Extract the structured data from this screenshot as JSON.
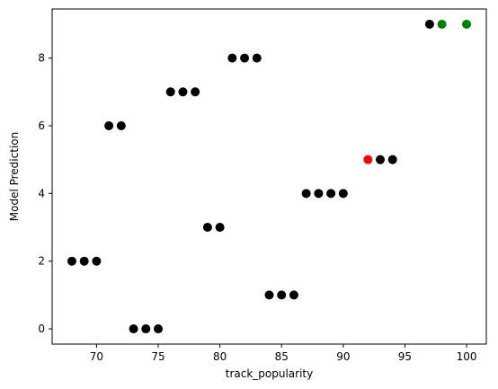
{
  "chart_data": {
    "type": "scatter",
    "title": "",
    "xlabel": "track_popularity",
    "ylabel": "Model Prediction",
    "xlim": [
      66.4,
      101.6
    ],
    "ylim": [
      -0.45,
      9.45
    ],
    "x_ticks": [
      70,
      75,
      80,
      85,
      90,
      95,
      100
    ],
    "y_ticks": [
      0,
      2,
      4,
      6,
      8
    ],
    "grid": false,
    "legend": "none",
    "series": [
      {
        "color": "#000000",
        "points": [
          {
            "x": 68,
            "y": 2
          },
          {
            "x": 69,
            "y": 2
          },
          {
            "x": 70,
            "y": 2
          },
          {
            "x": 71,
            "y": 6
          },
          {
            "x": 72,
            "y": 6
          },
          {
            "x": 73,
            "y": 0
          },
          {
            "x": 74,
            "y": 0
          },
          {
            "x": 75,
            "y": 0
          },
          {
            "x": 76,
            "y": 7
          },
          {
            "x": 77,
            "y": 7
          },
          {
            "x": 78,
            "y": 7
          },
          {
            "x": 79,
            "y": 3
          },
          {
            "x": 80,
            "y": 3
          },
          {
            "x": 81,
            "y": 8
          },
          {
            "x": 82,
            "y": 8
          },
          {
            "x": 83,
            "y": 8
          },
          {
            "x": 84,
            "y": 1
          },
          {
            "x": 85,
            "y": 1
          },
          {
            "x": 86,
            "y": 1
          },
          {
            "x": 87,
            "y": 4
          },
          {
            "x": 88,
            "y": 4
          },
          {
            "x": 89,
            "y": 4
          },
          {
            "x": 90,
            "y": 4
          },
          {
            "x": 93,
            "y": 5
          },
          {
            "x": 94,
            "y": 5
          },
          {
            "x": 97,
            "y": 9
          }
        ]
      },
      {
        "color": "#ff0000",
        "points": [
          {
            "x": 92,
            "y": 5
          }
        ]
      },
      {
        "color": "#008000",
        "points": [
          {
            "x": 98,
            "y": 9
          },
          {
            "x": 100,
            "y": 9
          }
        ]
      }
    ]
  }
}
